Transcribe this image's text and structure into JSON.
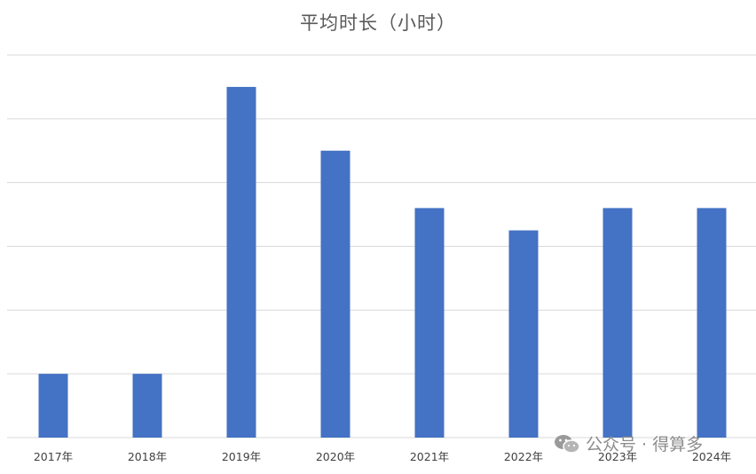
{
  "chart_data": {
    "type": "bar",
    "title": "平均时长（小时）",
    "categories": [
      "2017年",
      "2018年",
      "2019年",
      "2020年",
      "2021年",
      "2022年",
      "2023年",
      "2024年"
    ],
    "values": [
      1.0,
      1.0,
      5.5,
      4.5,
      3.6,
      3.25,
      3.6,
      3.6
    ],
    "ylim": [
      0,
      6
    ],
    "grid": true,
    "bar_color": "#4472C4",
    "gridline_color": "#d9d9d9"
  },
  "watermark": {
    "text": "公众号 · 得算多",
    "icon": "wechat-icon"
  }
}
